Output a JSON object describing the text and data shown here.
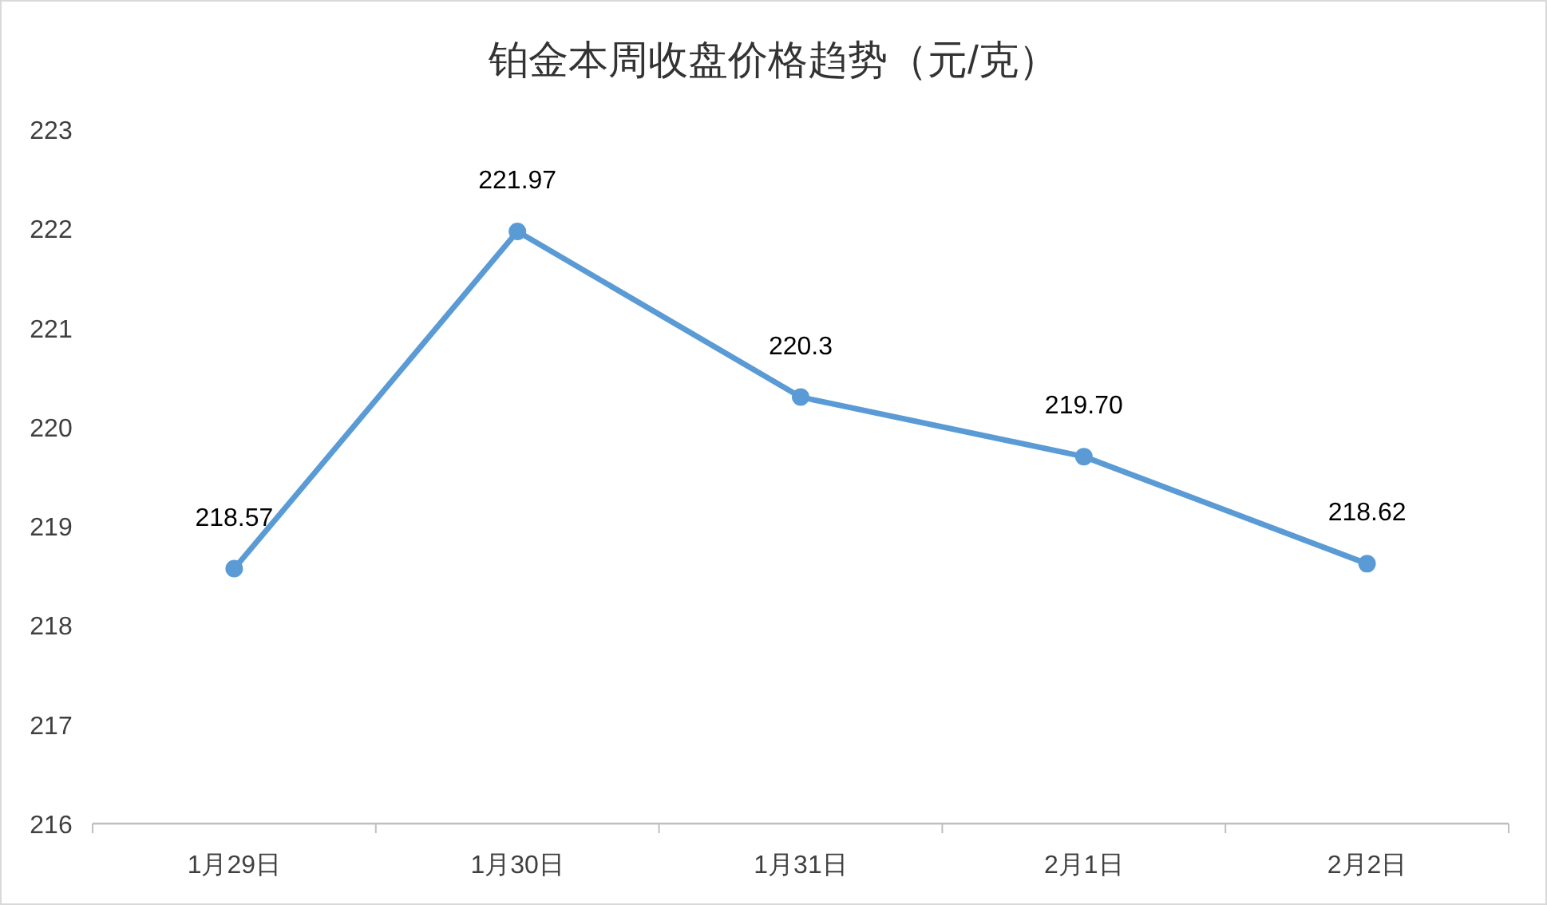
{
  "chart_data": {
    "type": "line",
    "title": "铂金本周收盘价格趋势（元/克）",
    "categories": [
      "1月29日",
      "1月30日",
      "1月31日",
      "2月1日",
      "2月2日"
    ],
    "series": [
      {
        "color": "#5b9bd5",
        "values": [
          218.57,
          221.97,
          220.3,
          219.7,
          218.62
        ],
        "value_labels": [
          "218.57",
          "221.97",
          "220.3",
          "219.70",
          "218.62"
        ]
      }
    ],
    "ylim": [
      216,
      223
    ],
    "yticks": [
      216,
      217,
      218,
      219,
      220,
      221,
      222,
      223
    ],
    "grid": false,
    "marker": "circle",
    "line_style": "solid"
  }
}
